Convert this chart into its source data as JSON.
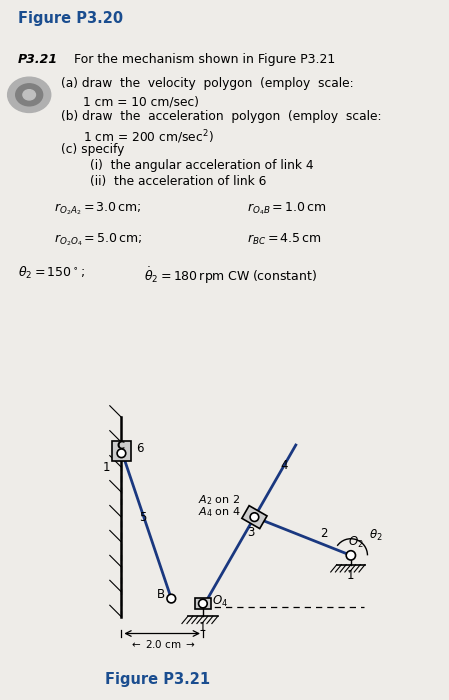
{
  "bg_color": "#eeece8",
  "title_text": "Figure P3.20",
  "title_color": "#1a4d8f",
  "title_fontsize": 10.5,
  "problem_number": "P3.21",
  "problem_text": "For the mechanism shown in Figure P3.21",
  "fig_label": "Figure P3.21",
  "fig_label_color": "#1a4d8f",
  "fig_label_fontsize": 10.5,
  "link_color": "#1a3880",
  "text_split": 0.525
}
